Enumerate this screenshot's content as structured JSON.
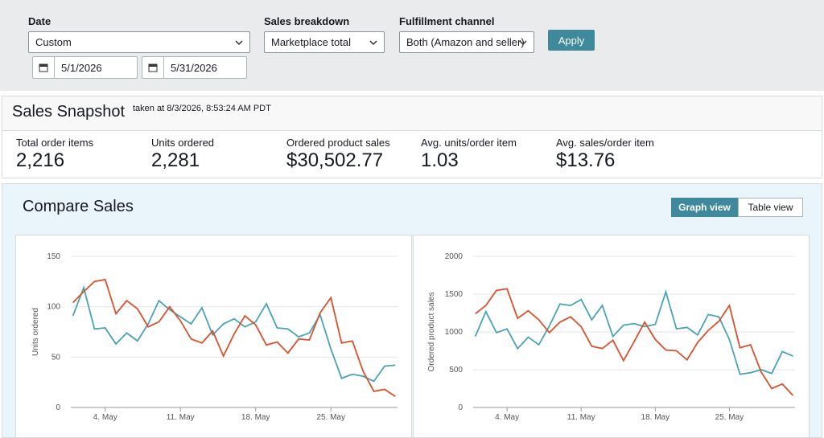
{
  "filters": {
    "date_label": "Date",
    "date_value": "Custom",
    "start_date": "5/1/2026",
    "end_date": "5/31/2026",
    "breakdown_label": "Sales breakdown",
    "breakdown_value": "Marketplace total",
    "channel_label": "Fulfillment channel",
    "channel_value": "Both (Amazon and seller)",
    "apply": "Apply"
  },
  "snapshot": {
    "title": "Sales Snapshot",
    "taken_at": "taken at 8/3/2026, 8:53:24 AM PDT",
    "metrics": [
      {
        "label": "Total order items",
        "value": "2,216"
      },
      {
        "label": "Units ordered",
        "value": "2,281"
      },
      {
        "label": "Ordered product sales",
        "value": "$30,502.77"
      },
      {
        "label": "Avg. units/order item",
        "value": "1.03"
      },
      {
        "label": "Avg. sales/order item",
        "value": "$13.76"
      }
    ]
  },
  "compare": {
    "title": "Compare Sales",
    "graph_view": "Graph view",
    "table_view": "Table view"
  },
  "chart_data": [
    {
      "type": "line",
      "y_label": "Units ordered",
      "x": [
        1,
        2,
        3,
        4,
        5,
        6,
        7,
        8,
        9,
        10,
        11,
        12,
        13,
        14,
        15,
        16,
        17,
        18,
        19,
        20,
        21,
        22,
        23,
        24,
        25,
        26,
        27,
        28,
        29,
        30,
        31
      ],
      "xlim": [
        0.8,
        31.2
      ],
      "xticks": [
        {
          "value": 4,
          "label": "4. May"
        },
        {
          "value": 11,
          "label": "11. May"
        },
        {
          "value": 18,
          "label": "18. May"
        },
        {
          "value": 25,
          "label": "25. May"
        }
      ],
      "ylim": [
        0,
        150
      ],
      "yticks": [
        0,
        50,
        100,
        150
      ],
      "grid": true,
      "series": [
        {
          "color": "#4aa3b5",
          "values": [
            91,
            119,
            78,
            79,
            63,
            74,
            66,
            83,
            106,
            97,
            90,
            83,
            99,
            72,
            83,
            88,
            80,
            85,
            103,
            79,
            78,
            70,
            74,
            92,
            58,
            29,
            33,
            31,
            26,
            41,
            42
          ]
        },
        {
          "color": "#d9512c",
          "values": [
            104,
            115,
            125,
            127,
            93,
            106,
            98,
            80,
            85,
            100,
            86,
            68,
            64,
            76,
            51,
            73,
            91,
            82,
            62,
            65,
            54,
            68,
            67,
            94,
            109,
            64,
            66,
            36,
            16,
            18,
            11
          ]
        }
      ]
    },
    {
      "type": "line",
      "y_label": "Ordered product sales",
      "x": [
        1,
        2,
        3,
        4,
        5,
        6,
        7,
        8,
        9,
        10,
        11,
        12,
        13,
        14,
        15,
        16,
        17,
        18,
        19,
        20,
        21,
        22,
        23,
        24,
        25,
        26,
        27,
        28,
        29,
        30,
        31
      ],
      "xlim": [
        0.8,
        31.2
      ],
      "xticks": [
        {
          "value": 4,
          "label": "4. May"
        },
        {
          "value": 11,
          "label": "11. May"
        },
        {
          "value": 18,
          "label": "18. May"
        },
        {
          "value": 25,
          "label": "25. May"
        }
      ],
      "ylim": [
        0,
        2000
      ],
      "yticks": [
        0,
        500,
        1000,
        1500,
        2000
      ],
      "grid": true,
      "series": [
        {
          "color": "#4aa3b5",
          "values": [
            940,
            1270,
            990,
            1040,
            780,
            930,
            830,
            1080,
            1370,
            1350,
            1430,
            1160,
            1350,
            940,
            1090,
            1110,
            1070,
            1100,
            1530,
            1040,
            1060,
            960,
            1230,
            1200,
            900,
            440,
            460,
            500,
            450,
            740,
            680
          ]
        },
        {
          "color": "#d9512c",
          "values": [
            1240,
            1350,
            1550,
            1570,
            1180,
            1280,
            1160,
            990,
            1130,
            1200,
            1070,
            810,
            780,
            890,
            620,
            870,
            1130,
            900,
            760,
            750,
            630,
            860,
            1020,
            1140,
            1350,
            790,
            830,
            470,
            250,
            310,
            160
          ]
        }
      ]
    }
  ]
}
